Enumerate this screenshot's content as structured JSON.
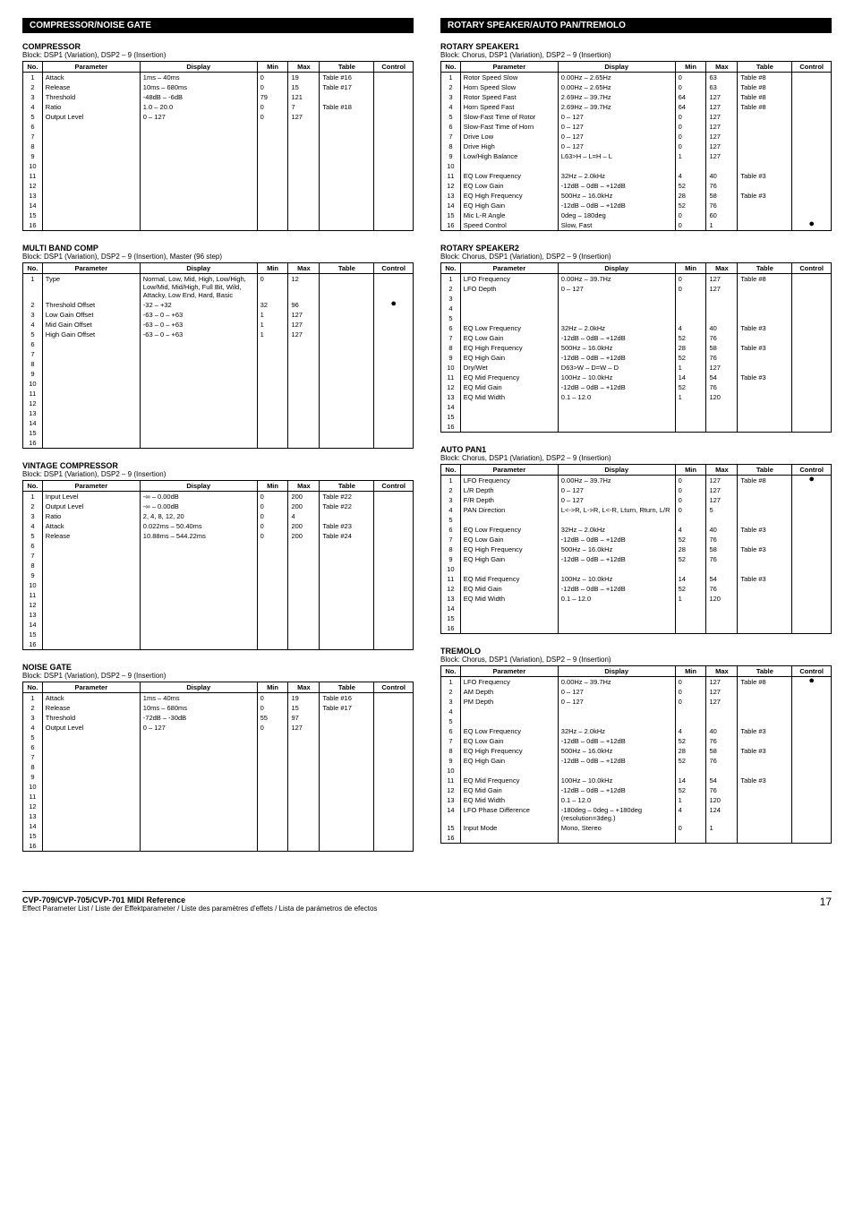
{
  "footer": {
    "left_bold": "CVP-709/CVP-705/CVP-701 MIDI Reference",
    "left_small": "Effect Parameter List / Liste der Effektparameter / Liste des paramètres d'effets / Lista de parámetros de efectos",
    "page": "17"
  },
  "headers": {
    "no": "No.",
    "parameter": "Parameter",
    "display": "Display",
    "min": "Min",
    "max": "Max",
    "table": "Table",
    "control": "Control"
  },
  "left_section": "COMPRESSOR/NOISE GATE",
  "right_section": "ROTARY SPEAKER/AUTO PAN/TREMOLO",
  "tables": {
    "compressor": {
      "title": "COMPRESSOR",
      "sub": "Block: DSP1 (Variation), DSP2 – 9 (Insertion)",
      "rows": [
        {
          "n": "1",
          "p": "Attack",
          "d": "1ms – 40ms",
          "mn": "0",
          "mx": "19",
          "t": "Table #16",
          "c": ""
        },
        {
          "n": "2",
          "p": "Release",
          "d": "10ms – 680ms",
          "mn": "0",
          "mx": "15",
          "t": "Table #17",
          "c": ""
        },
        {
          "n": "3",
          "p": "Threshold",
          "d": "-48dB – -6dB",
          "mn": "79",
          "mx": "121",
          "t": "",
          "c": ""
        },
        {
          "n": "4",
          "p": "Ratio",
          "d": "1.0 – 20.0",
          "mn": "0",
          "mx": "7",
          "t": "Table #18",
          "c": ""
        },
        {
          "n": "5",
          "p": "Output Level",
          "d": "0 – 127",
          "mn": "0",
          "mx": "127",
          "t": "",
          "c": ""
        },
        {
          "n": "6"
        },
        {
          "n": "7"
        },
        {
          "n": "8"
        },
        {
          "n": "9"
        },
        {
          "n": "10"
        },
        {
          "n": "11"
        },
        {
          "n": "12"
        },
        {
          "n": "13"
        },
        {
          "n": "14"
        },
        {
          "n": "15"
        },
        {
          "n": "16"
        }
      ]
    },
    "multiband": {
      "title": "MULTI BAND COMP",
      "sub": "Block: DSP1 (Variation), DSP2 – 9 (Insertion), Master (96 step)",
      "rows": [
        {
          "n": "1",
          "p": "Type",
          "d": "Normal, Low, Mid, High, Low/High, Low/Mid, Mid/High, Full Bit, Wild, Attacky, Low End, Hard, Basic",
          "mn": "0",
          "mx": "12",
          "t": "",
          "c": ""
        },
        {
          "n": "2",
          "p": "Threshold Offset",
          "d": "-32 – +32",
          "mn": "32",
          "mx": "96",
          "t": "",
          "c": "●"
        },
        {
          "n": "3",
          "p": "Low Gain Offset",
          "d": "-63 – 0 – +63",
          "mn": "1",
          "mx": "127",
          "t": "",
          "c": ""
        },
        {
          "n": "4",
          "p": "Mid Gain Offset",
          "d": "-63 – 0 – +63",
          "mn": "1",
          "mx": "127",
          "t": "",
          "c": ""
        },
        {
          "n": "5",
          "p": "High Gain Offset",
          "d": "-63 – 0 – +63",
          "mn": "1",
          "mx": "127",
          "t": "",
          "c": ""
        },
        {
          "n": "6"
        },
        {
          "n": "7"
        },
        {
          "n": "8"
        },
        {
          "n": "9"
        },
        {
          "n": "10"
        },
        {
          "n": "11"
        },
        {
          "n": "12"
        },
        {
          "n": "13"
        },
        {
          "n": "14"
        },
        {
          "n": "15"
        },
        {
          "n": "16"
        }
      ]
    },
    "vintage": {
      "title": "VINTAGE COMPRESSOR",
      "sub": "Block: DSP1 (Variation), DSP2 – 9 (Insertion)",
      "rows": [
        {
          "n": "1",
          "p": "Input Level",
          "d": "-∞ – 0.00dB",
          "mn": "0",
          "mx": "200",
          "t": "Table #22",
          "c": ""
        },
        {
          "n": "2",
          "p": "Output Level",
          "d": "-∞ – 0.00dB",
          "mn": "0",
          "mx": "200",
          "t": "Table #22",
          "c": ""
        },
        {
          "n": "3",
          "p": "Ratio",
          "d": "2, 4, 8, 12, 20",
          "mn": "0",
          "mx": "4",
          "t": "",
          "c": ""
        },
        {
          "n": "4",
          "p": "Attack",
          "d": "0.022ms – 50.40ms",
          "mn": "0",
          "mx": "200",
          "t": "Table #23",
          "c": ""
        },
        {
          "n": "5",
          "p": "Release",
          "d": "10.88ms – 544.22ms",
          "mn": "0",
          "mx": "200",
          "t": "Table #24",
          "c": ""
        },
        {
          "n": "6"
        },
        {
          "n": "7"
        },
        {
          "n": "8"
        },
        {
          "n": "9"
        },
        {
          "n": "10"
        },
        {
          "n": "11"
        },
        {
          "n": "12"
        },
        {
          "n": "13"
        },
        {
          "n": "14"
        },
        {
          "n": "15"
        },
        {
          "n": "16"
        }
      ]
    },
    "noisegate": {
      "title": "NOISE GATE",
      "sub": "Block: DSP1 (Variation), DSP2 – 9 (Insertion)",
      "rows": [
        {
          "n": "1",
          "p": "Attack",
          "d": "1ms – 40ms",
          "mn": "0",
          "mx": "19",
          "t": "Table #16",
          "c": ""
        },
        {
          "n": "2",
          "p": "Release",
          "d": "10ms – 680ms",
          "mn": "0",
          "mx": "15",
          "t": "Table #17",
          "c": ""
        },
        {
          "n": "3",
          "p": "Threshold",
          "d": "-72dB – -30dB",
          "mn": "55",
          "mx": "97",
          "t": "",
          "c": ""
        },
        {
          "n": "4",
          "p": "Output Level",
          "d": "0 – 127",
          "mn": "0",
          "mx": "127",
          "t": "",
          "c": ""
        },
        {
          "n": "5"
        },
        {
          "n": "6"
        },
        {
          "n": "7"
        },
        {
          "n": "8"
        },
        {
          "n": "9"
        },
        {
          "n": "10"
        },
        {
          "n": "11"
        },
        {
          "n": "12"
        },
        {
          "n": "13"
        },
        {
          "n": "14"
        },
        {
          "n": "15"
        },
        {
          "n": "16"
        }
      ]
    },
    "rotary1": {
      "title": "ROTARY SPEAKER1",
      "sub": "Block: Chorus, DSP1 (Variation), DSP2 – 9 (Insertion)",
      "rows": [
        {
          "n": "1",
          "p": "Rotor Speed Slow",
          "d": "0.00Hz – 2.65Hz",
          "mn": "0",
          "mx": "63",
          "t": "Table #8",
          "c": ""
        },
        {
          "n": "2",
          "p": "Horn Speed Slow",
          "d": "0.00Hz – 2.65Hz",
          "mn": "0",
          "mx": "63",
          "t": "Table #8",
          "c": ""
        },
        {
          "n": "3",
          "p": "Rotor Speed Fast",
          "d": "2.69Hz – 39.7Hz",
          "mn": "64",
          "mx": "127",
          "t": "Table #8",
          "c": ""
        },
        {
          "n": "4",
          "p": "Horn Speed Fast",
          "d": "2.69Hz – 39.7Hz",
          "mn": "64",
          "mx": "127",
          "t": "Table #8",
          "c": ""
        },
        {
          "n": "5",
          "p": "Slow-Fast Time of Rotor",
          "d": "0 – 127",
          "mn": "0",
          "mx": "127",
          "t": "",
          "c": ""
        },
        {
          "n": "6",
          "p": "Slow-Fast Time of Horn",
          "d": "0 – 127",
          "mn": "0",
          "mx": "127",
          "t": "",
          "c": ""
        },
        {
          "n": "7",
          "p": "Drive Low",
          "d": "0 – 127",
          "mn": "0",
          "mx": "127",
          "t": "",
          "c": ""
        },
        {
          "n": "8",
          "p": "Drive High",
          "d": "0 – 127",
          "mn": "0",
          "mx": "127",
          "t": "",
          "c": ""
        },
        {
          "n": "9",
          "p": "Low/High Balance",
          "d": "L63>H – L=H – L<H63",
          "mn": "1",
          "mx": "127",
          "t": "",
          "c": ""
        },
        {
          "n": "10"
        },
        {
          "n": "11",
          "p": "EQ Low Frequency",
          "d": "32Hz – 2.0kHz",
          "mn": "4",
          "mx": "40",
          "t": "Table #3",
          "c": ""
        },
        {
          "n": "12",
          "p": "EQ Low Gain",
          "d": "-12dB – 0dB – +12dB",
          "mn": "52",
          "mx": "76",
          "t": "",
          "c": ""
        },
        {
          "n": "13",
          "p": "EQ High Frequency",
          "d": "500Hz – 16.0kHz",
          "mn": "28",
          "mx": "58",
          "t": "Table #3",
          "c": ""
        },
        {
          "n": "14",
          "p": "EQ High Gain",
          "d": "-12dB – 0dB – +12dB",
          "mn": "52",
          "mx": "76",
          "t": "",
          "c": ""
        },
        {
          "n": "15",
          "p": "Mic L-R Angle",
          "d": "0deg – 180deg",
          "mn": "0",
          "mx": "60",
          "t": "",
          "c": ""
        },
        {
          "n": "16",
          "p": "Speed Control",
          "d": "Slow, Fast",
          "mn": "0",
          "mx": "1",
          "t": "",
          "c": "●"
        }
      ]
    },
    "rotary2": {
      "title": "ROTARY SPEAKER2",
      "sub": "Block: Chorus, DSP1 (Variation), DSP2 – 9 (Insertion)",
      "rows": [
        {
          "n": "1",
          "p": "LFO Frequency",
          "d": "0.00Hz – 39.7Hz",
          "mn": "0",
          "mx": "127",
          "t": "Table #8",
          "c": ""
        },
        {
          "n": "2",
          "p": "LFO Depth",
          "d": "0 – 127",
          "mn": "0",
          "mx": "127",
          "t": "",
          "c": ""
        },
        {
          "n": "3"
        },
        {
          "n": "4"
        },
        {
          "n": "5"
        },
        {
          "n": "6",
          "p": "EQ Low Frequency",
          "d": "32Hz – 2.0kHz",
          "mn": "4",
          "mx": "40",
          "t": "Table #3",
          "c": ""
        },
        {
          "n": "7",
          "p": "EQ Low Gain",
          "d": "-12dB – 0dB – +12dB",
          "mn": "52",
          "mx": "76",
          "t": "",
          "c": ""
        },
        {
          "n": "8",
          "p": "EQ High Frequency",
          "d": "500Hz – 16.0kHz",
          "mn": "28",
          "mx": "58",
          "t": "Table #3",
          "c": ""
        },
        {
          "n": "9",
          "p": "EQ High Gain",
          "d": "-12dB – 0dB – +12dB",
          "mn": "52",
          "mx": "76",
          "t": "",
          "c": ""
        },
        {
          "n": "10",
          "p": "Dry/Wet",
          "d": "D63>W – D=W – D<W63",
          "mn": "1",
          "mx": "127",
          "t": "",
          "c": ""
        },
        {
          "n": "11",
          "p": "EQ Mid Frequency",
          "d": "100Hz – 10.0kHz",
          "mn": "14",
          "mx": "54",
          "t": "Table #3",
          "c": ""
        },
        {
          "n": "12",
          "p": "EQ Mid Gain",
          "d": "-12dB – 0dB – +12dB",
          "mn": "52",
          "mx": "76",
          "t": "",
          "c": ""
        },
        {
          "n": "13",
          "p": "EQ Mid Width",
          "d": "0.1 – 12.0",
          "mn": "1",
          "mx": "120",
          "t": "",
          "c": ""
        },
        {
          "n": "14"
        },
        {
          "n": "15"
        },
        {
          "n": "16"
        }
      ]
    },
    "autopan1": {
      "title": "AUTO PAN1",
      "sub": "Block: Chorus, DSP1 (Variation), DSP2 – 9 (Insertion)",
      "rows": [
        {
          "n": "1",
          "p": "LFO Frequency",
          "d": "0.00Hz – 39.7Hz",
          "mn": "0",
          "mx": "127",
          "t": "Table #8",
          "c": "●"
        },
        {
          "n": "2",
          "p": "L/R Depth",
          "d": "0 – 127",
          "mn": "0",
          "mx": "127",
          "t": "",
          "c": ""
        },
        {
          "n": "3",
          "p": "F/R Depth",
          "d": "0 – 127",
          "mn": "0",
          "mx": "127",
          "t": "",
          "c": ""
        },
        {
          "n": "4",
          "p": "PAN Direction",
          "d": "L<->R, L->R, L<-R, Lturn, Rturn, L/R",
          "mn": "0",
          "mx": "5",
          "t": "",
          "c": ""
        },
        {
          "n": "5"
        },
        {
          "n": "6",
          "p": "EQ Low Frequency",
          "d": "32Hz – 2.0kHz",
          "mn": "4",
          "mx": "40",
          "t": "Table #3",
          "c": ""
        },
        {
          "n": "7",
          "p": "EQ Low Gain",
          "d": "-12dB – 0dB – +12dB",
          "mn": "52",
          "mx": "76",
          "t": "",
          "c": ""
        },
        {
          "n": "8",
          "p": "EQ High Frequency",
          "d": "500Hz – 16.0kHz",
          "mn": "28",
          "mx": "58",
          "t": "Table #3",
          "c": ""
        },
        {
          "n": "9",
          "p": "EQ High Gain",
          "d": "-12dB – 0dB – +12dB",
          "mn": "52",
          "mx": "76",
          "t": "",
          "c": ""
        },
        {
          "n": "10"
        },
        {
          "n": "11",
          "p": "EQ Mid Frequency",
          "d": "100Hz – 10.0kHz",
          "mn": "14",
          "mx": "54",
          "t": "Table #3",
          "c": ""
        },
        {
          "n": "12",
          "p": "EQ Mid Gain",
          "d": "-12dB – 0dB – +12dB",
          "mn": "52",
          "mx": "76",
          "t": "",
          "c": ""
        },
        {
          "n": "13",
          "p": "EQ Mid Width",
          "d": "0.1 – 12.0",
          "mn": "1",
          "mx": "120",
          "t": "",
          "c": ""
        },
        {
          "n": "14"
        },
        {
          "n": "15"
        },
        {
          "n": "16"
        }
      ]
    },
    "tremolo": {
      "title": "TREMOLO",
      "sub": "Block: Chorus, DSP1 (Variation), DSP2 – 9 (Insertion)",
      "rows": [
        {
          "n": "1",
          "p": "LFO Frequency",
          "d": "0.00Hz – 39.7Hz",
          "mn": "0",
          "mx": "127",
          "t": "Table #8",
          "c": "●"
        },
        {
          "n": "2",
          "p": "AM Depth",
          "d": "0 – 127",
          "mn": "0",
          "mx": "127",
          "t": "",
          "c": ""
        },
        {
          "n": "3",
          "p": "PM Depth",
          "d": "0 – 127",
          "mn": "0",
          "mx": "127",
          "t": "",
          "c": ""
        },
        {
          "n": "4"
        },
        {
          "n": "5"
        },
        {
          "n": "6",
          "p": "EQ Low Frequency",
          "d": "32Hz – 2.0kHz",
          "mn": "4",
          "mx": "40",
          "t": "Table #3",
          "c": ""
        },
        {
          "n": "7",
          "p": "EQ Low Gain",
          "d": "-12dB – 0dB – +12dB",
          "mn": "52",
          "mx": "76",
          "t": "",
          "c": ""
        },
        {
          "n": "8",
          "p": "EQ High Frequency",
          "d": "500Hz – 16.0kHz",
          "mn": "28",
          "mx": "58",
          "t": "Table #3",
          "c": ""
        },
        {
          "n": "9",
          "p": "EQ High Gain",
          "d": "-12dB – 0dB – +12dB",
          "mn": "52",
          "mx": "76",
          "t": "",
          "c": ""
        },
        {
          "n": "10"
        },
        {
          "n": "11",
          "p": "EQ Mid Frequency",
          "d": "100Hz – 10.0kHz",
          "mn": "14",
          "mx": "54",
          "t": "Table #3",
          "c": ""
        },
        {
          "n": "12",
          "p": "EQ Mid Gain",
          "d": "-12dB – 0dB – +12dB",
          "mn": "52",
          "mx": "76",
          "t": "",
          "c": ""
        },
        {
          "n": "13",
          "p": "EQ Mid Width",
          "d": "0.1 – 12.0",
          "mn": "1",
          "mx": "120",
          "t": "",
          "c": ""
        },
        {
          "n": "14",
          "p": "LFO Phase Difference",
          "d": "-180deg – 0deg – +180deg (resolution=3deg.)",
          "mn": "4",
          "mx": "124",
          "t": "",
          "c": ""
        },
        {
          "n": "15",
          "p": "Input Mode",
          "d": "Mono, Stereo",
          "mn": "0",
          "mx": "1",
          "t": "",
          "c": ""
        },
        {
          "n": "16"
        }
      ]
    }
  }
}
